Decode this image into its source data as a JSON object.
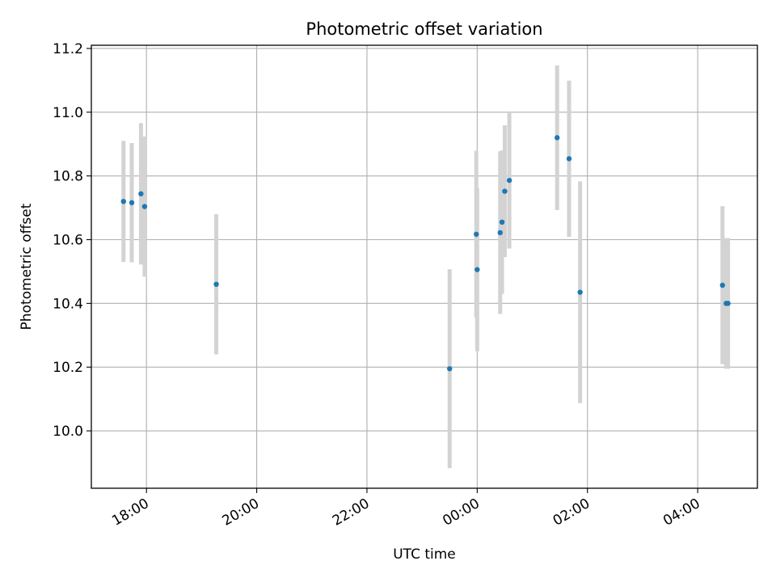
{
  "chart_data": {
    "type": "scatter",
    "title": "Photometric offset variation",
    "xlabel": "UTC time",
    "ylabel": "Photometric offset",
    "xlim": [
      "17:00",
      "05:05"
    ],
    "ylim": [
      9.82,
      11.21
    ],
    "grid": true,
    "legend": "none",
    "colors": {
      "point": "#1f77b4",
      "errorbar": "#d3d3d3",
      "grid": "#b0b0b0"
    },
    "x_ticks": [
      "18:00",
      "20:00",
      "22:00",
      "00:00",
      "02:00",
      "04:00"
    ],
    "y_ticks": [
      10.0,
      10.2,
      10.4,
      10.6,
      10.8,
      11.0,
      11.2
    ],
    "points": [
      {
        "x": "17:35",
        "y": 10.72,
        "err": 0.19
      },
      {
        "x": "17:44",
        "y": 10.716,
        "err": 0.187
      },
      {
        "x": "17:54",
        "y": 10.744,
        "err": 0.222
      },
      {
        "x": "17:58",
        "y": 10.704,
        "err": 0.22
      },
      {
        "x": "19:16",
        "y": 10.46,
        "err": 0.22
      },
      {
        "x": "23:30",
        "y": 10.195,
        "err": 0.312
      },
      {
        "x": "23:59",
        "y": 10.617,
        "err": 0.262
      },
      {
        "x": "00:00",
        "y": 10.506,
        "err": 0.256
      },
      {
        "x": "00:25",
        "y": 10.622,
        "err": 0.255
      },
      {
        "x": "00:27",
        "y": 10.655,
        "err": 0.225
      },
      {
        "x": "00:30",
        "y": 10.752,
        "err": 0.207
      },
      {
        "x": "00:35",
        "y": 10.786,
        "err": 0.214
      },
      {
        "x": "01:27",
        "y": 10.92,
        "err": 0.227
      },
      {
        "x": "01:40",
        "y": 10.854,
        "err": 0.245
      },
      {
        "x": "01:52",
        "y": 10.435,
        "err": 0.348
      },
      {
        "x": "04:27",
        "y": 10.457,
        "err": 0.248
      },
      {
        "x": "04:31",
        "y": 10.4,
        "err": 0.205
      },
      {
        "x": "04:33",
        "y": 10.4,
        "err": 0.205
      }
    ]
  }
}
